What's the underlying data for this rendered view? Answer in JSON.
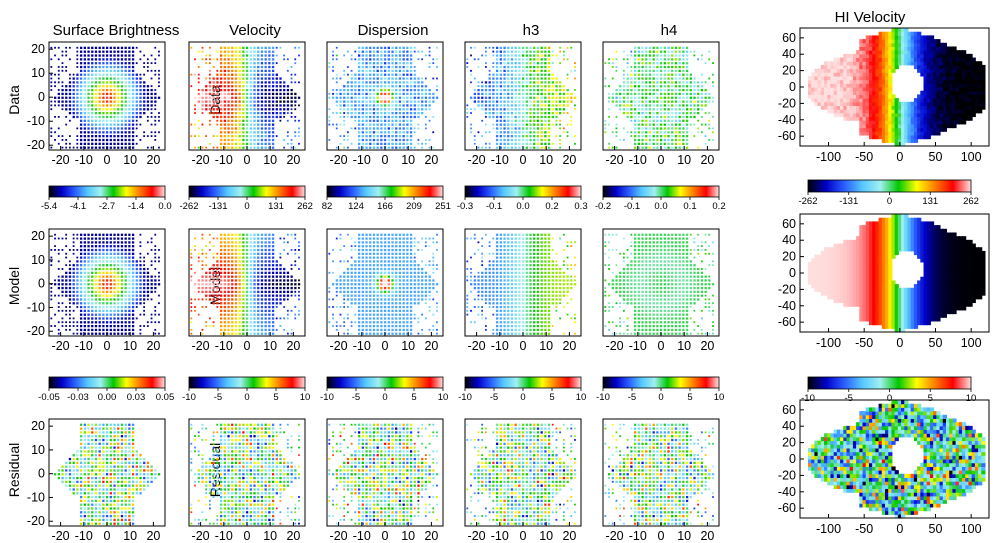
{
  "chart_data": {
    "type": "heatmap",
    "kinematics": {
      "columns": [
        "Surface Brightness",
        "Velocity",
        "Dispersion",
        "h3",
        "h4"
      ],
      "rows": [
        "Data",
        "Model",
        "Residual"
      ],
      "panel_axis_ticks": [
        "-20",
        "-10",
        "0",
        "10",
        "20"
      ],
      "xlim": [
        -25,
        25
      ],
      "ylim": [
        -22,
        23
      ],
      "colorbars": [
        [
          {
            "ticks": [
              "-5.4",
              "-4.1",
              "-2.7",
              "-1.4",
              "0.0"
            ],
            "range": [
              -5.4,
              0.0
            ]
          },
          {
            "ticks": [
              "-262",
              "-131",
              "0",
              "131",
              "262"
            ],
            "range": [
              -262,
              262
            ]
          },
          {
            "ticks": [
              "82",
              "124",
              "166",
              "209",
              "251"
            ],
            "range": [
              82,
              251
            ]
          },
          {
            "ticks": [
              "-0.3",
              "-0.1",
              "0.0",
              "0.2",
              "0.3"
            ],
            "range": [
              -0.3,
              0.3
            ]
          },
          {
            "ticks": [
              "-0.2",
              "-0.1",
              "0.0",
              "0.1",
              "0.2"
            ],
            "range": [
              -0.2,
              0.2
            ]
          }
        ],
        [
          {
            "ticks": [
              "-0.05",
              "-0.03",
              "0.00",
              "0.03",
              "0.05"
            ],
            "range": [
              -0.05,
              0.05
            ]
          },
          {
            "ticks": [
              "-10",
              "-5",
              "0",
              "5",
              "10"
            ],
            "range": [
              -10,
              10
            ]
          },
          {
            "ticks": [
              "-10",
              "-5",
              "0",
              "5",
              "10"
            ],
            "range": [
              -10,
              10
            ]
          },
          {
            "ticks": [
              "-10",
              "-5",
              "0",
              "5",
              "10"
            ],
            "range": [
              -10,
              10
            ]
          },
          {
            "ticks": [
              "-10",
              "-5",
              "0",
              "5",
              "10"
            ],
            "range": [
              -10,
              10
            ]
          }
        ]
      ]
    },
    "hi_velocity": {
      "title": "HI Velocity",
      "x_ticks": [
        "-100",
        "-50",
        "0",
        "50",
        "100"
      ],
      "y_ticks": [
        "60",
        "40",
        "20",
        "0",
        "-20",
        "-40",
        "-60"
      ],
      "xlim": [
        -140,
        125
      ],
      "ylim": [
        -72,
        72
      ],
      "colorbars": [
        {
          "ticks": [
            "-262",
            "-131",
            "0",
            "131",
            "262"
          ],
          "range": [
            -262,
            262
          ]
        },
        {
          "ticks": [
            "-10",
            "-5",
            "0",
            "5",
            "10"
          ],
          "range": [
            -10,
            10
          ]
        }
      ]
    },
    "colormap": [
      "#000000",
      "#0000c8",
      "#2a5cff",
      "#55c8ff",
      "#a0f0f0",
      "#00c800",
      "#ffff00",
      "#ff7f00",
      "#ff0000",
      "#ffe0e0"
    ],
    "point_color": "#00008b"
  }
}
